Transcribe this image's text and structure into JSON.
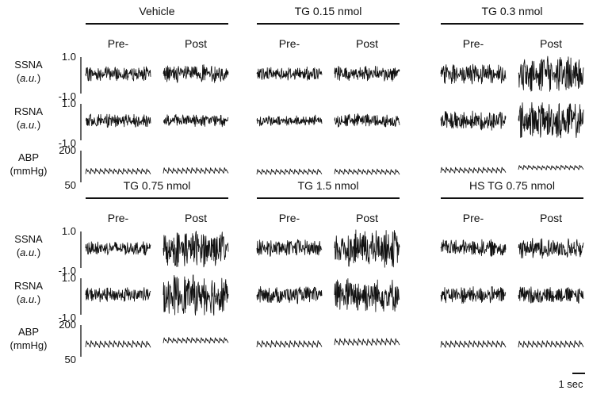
{
  "chart_data": {
    "type": "line",
    "phases": [
      "Pre-",
      "Post"
    ],
    "signals": [
      {
        "key": "ssna",
        "name": "SSNA",
        "unit": "a.u.",
        "ylim": [
          -1.0,
          1.0
        ],
        "ticks": [
          "1.0",
          "-1.0"
        ]
      },
      {
        "key": "rsna",
        "name": "RSNA",
        "unit": "a.u.",
        "ylim": [
          -1.0,
          1.0
        ],
        "ticks": [
          "1.0",
          "-1.0"
        ]
      },
      {
        "key": "abp",
        "name": "ABP",
        "unit": "mmHg",
        "ylim": [
          50,
          200
        ],
        "ticks": [
          "200",
          "50"
        ]
      }
    ],
    "conditions": [
      {
        "label": "Vehicle",
        "ssna": {
          "pre": 0.22,
          "post": 0.26
        },
        "rsna": {
          "pre": 0.2,
          "post": 0.18
        },
        "abp": {
          "pre": [
            90,
            115
          ],
          "post": [
            92,
            118
          ]
        }
      },
      {
        "label": "TG 0.15 nmol",
        "ssna": {
          "pre": 0.2,
          "post": 0.22
        },
        "rsna": {
          "pre": 0.16,
          "post": 0.2
        },
        "abp": {
          "pre": [
            88,
            112
          ],
          "post": [
            88,
            112
          ]
        }
      },
      {
        "label": "TG 0.3 nmol",
        "ssna": {
          "pre": 0.3,
          "post": 0.55
        },
        "rsna": {
          "pre": 0.28,
          "post": 0.55
        },
        "abp": {
          "pre": [
            95,
            120
          ],
          "post": [
            110,
            130
          ]
        }
      },
      {
        "label": "TG 0.75 nmol",
        "ssna": {
          "pre": 0.2,
          "post": 0.55
        },
        "rsna": {
          "pre": 0.22,
          "post": 0.6
        },
        "abp": {
          "pre": [
            95,
            125
          ],
          "post": [
            115,
            140
          ]
        }
      },
      {
        "label": "TG 1.5 nmol",
        "ssna": {
          "pre": 0.25,
          "post": 0.55
        },
        "rsna": {
          "pre": 0.25,
          "post": 0.5
        },
        "abp": {
          "pre": [
            95,
            125
          ],
          "post": [
            105,
            135
          ]
        }
      },
      {
        "label": "HS TG 0.75 nmol",
        "ssna": {
          "pre": 0.25,
          "post": 0.3
        },
        "rsna": {
          "pre": 0.25,
          "post": 0.25
        },
        "abp": {
          "pre": [
            95,
            125
          ],
          "post": [
            95,
            125
          ]
        }
      }
    ],
    "scale_bar": "1 sec",
    "colors": {
      "trace": "#111111",
      "background": "#ffffff"
    }
  }
}
